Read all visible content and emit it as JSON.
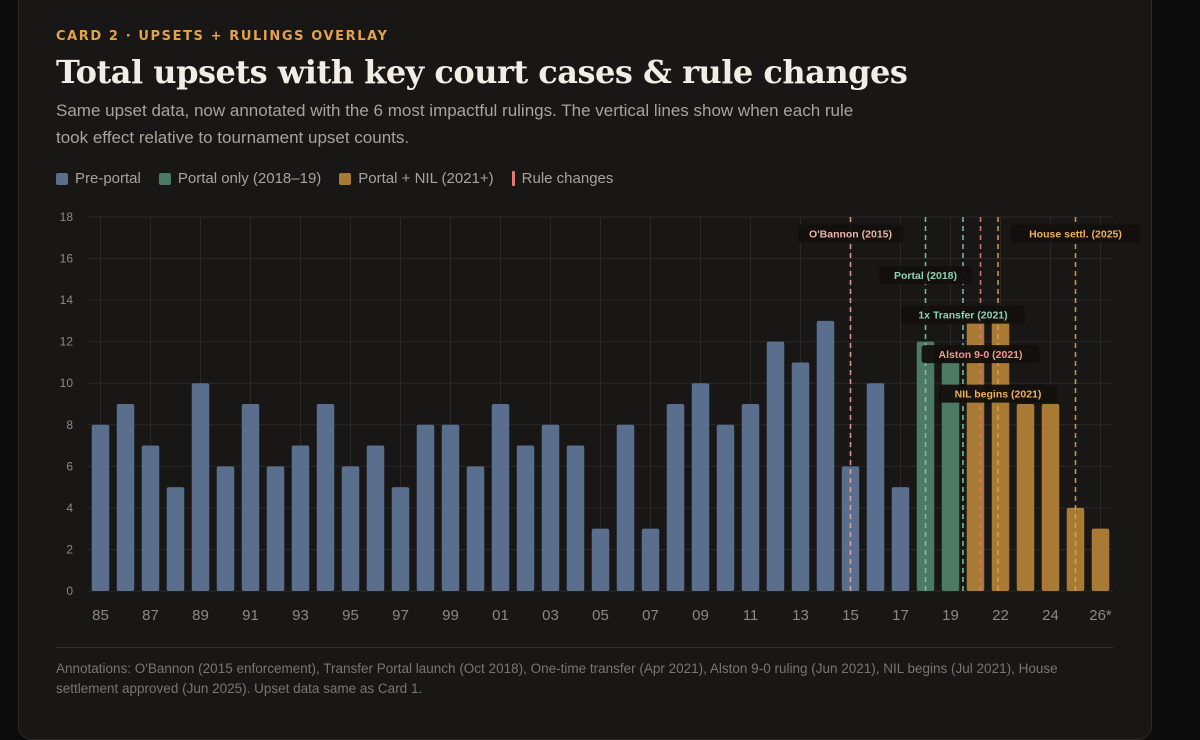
{
  "header": {
    "eyebrow": "CARD 2 · UPSETS + RULINGS OVERLAY",
    "title": "Total upsets with key court cases & rule changes",
    "subtitle": "Same upset data, now annotated with the 6 most impactful rulings. The vertical lines show when each rule took effect relative to tournament upset counts."
  },
  "legend": [
    {
      "label": "Pre-portal",
      "color": "#5a6e8d",
      "kind": "box"
    },
    {
      "label": "Portal only (2018–19)",
      "color": "#4c7a63",
      "kind": "box"
    },
    {
      "label": "Portal + NIL (2021+)",
      "color": "#a87a34",
      "kind": "box"
    },
    {
      "label": "Rule changes",
      "color": "#e07a72",
      "kind": "line"
    }
  ],
  "colors": {
    "pre": "#5a6e8d",
    "portal": "#4c7a63",
    "nil": "#a87a34",
    "grid": "#2a2927",
    "tick": "#8d8880"
  },
  "chart_data": {
    "type": "bar",
    "categories": [
      "85",
      "86",
      "87",
      "88",
      "89",
      "90",
      "91",
      "92",
      "93",
      "94",
      "95",
      "96",
      "97",
      "98",
      "99",
      "00",
      "01",
      "02",
      "03",
      "04",
      "05",
      "06",
      "07",
      "08",
      "09",
      "10",
      "11",
      "12",
      "13",
      "14",
      "15",
      "16",
      "17",
      "18",
      "19",
      "21",
      "22",
      "23",
      "24",
      "25",
      "26*"
    ],
    "tick_labels": [
      "85",
      "",
      "87",
      "",
      "89",
      "",
      "91",
      "",
      "93",
      "",
      "95",
      "",
      "97",
      "",
      "99",
      "",
      "01",
      "",
      "03",
      "",
      "05",
      "",
      "07",
      "",
      "09",
      "",
      "11",
      "",
      "13",
      "",
      "15",
      "",
      "17",
      "",
      "19",
      "",
      "22",
      "",
      "24",
      "",
      "26*"
    ],
    "values": [
      8,
      9,
      7,
      5,
      10,
      6,
      9,
      6,
      7,
      9,
      6,
      7,
      5,
      8,
      8,
      6,
      9,
      7,
      8,
      7,
      3,
      8,
      3,
      9,
      10,
      8,
      9,
      12,
      11,
      13,
      6,
      10,
      5,
      12,
      11,
      13,
      13,
      9,
      9,
      4,
      3
    ],
    "groups": [
      "pre",
      "pre",
      "pre",
      "pre",
      "pre",
      "pre",
      "pre",
      "pre",
      "pre",
      "pre",
      "pre",
      "pre",
      "pre",
      "pre",
      "pre",
      "pre",
      "pre",
      "pre",
      "pre",
      "pre",
      "pre",
      "pre",
      "pre",
      "pre",
      "pre",
      "pre",
      "pre",
      "pre",
      "pre",
      "pre",
      "pre",
      "pre",
      "pre",
      "portal",
      "portal",
      "nil",
      "nil",
      "nil",
      "nil",
      "nil",
      "nil"
    ],
    "ylim": [
      0,
      18
    ],
    "yticks": [
      0,
      2,
      4,
      6,
      8,
      10,
      12,
      14,
      16,
      18
    ],
    "grid": true,
    "rulings": [
      {
        "label": "O'Bannon (2015)",
        "at": 30,
        "color": "#e6a49a",
        "label_color": "#e8b3a8",
        "label_level": 17.2
      },
      {
        "label": "Portal (2018)",
        "at": 33,
        "color": "#7ec8a9",
        "label_color": "#8ed3b4",
        "label_level": 15.2
      },
      {
        "label": "1x Transfer (2021)",
        "at": 34.5,
        "color": "#7ec8a9",
        "label_color": "#8ed3b4",
        "label_level": 13.3
      },
      {
        "label": "Alston 9-0 (2021)",
        "at": 35.2,
        "color": "#e07a72",
        "label_color": "#ee9a90",
        "label_level": 11.4
      },
      {
        "label": "NIL begins (2021)",
        "at": 35.9,
        "color": "#e0a04a",
        "label_color": "#eeb05a",
        "label_level": 9.5
      },
      {
        "label": "House settl. (2025)",
        "at": 39,
        "color": "#e0a04a",
        "label_color": "#eeb05a",
        "label_level": 17.2
      }
    ]
  },
  "footnote": "Annotations: O'Bannon (2015 enforcement), Transfer Portal launch (Oct 2018), One-time transfer (Apr 2021), Alston 9-0 ruling (Jun 2021), NIL begins (Jul 2021), House settlement approved (Jun 2025). Upset data same as Card 1."
}
